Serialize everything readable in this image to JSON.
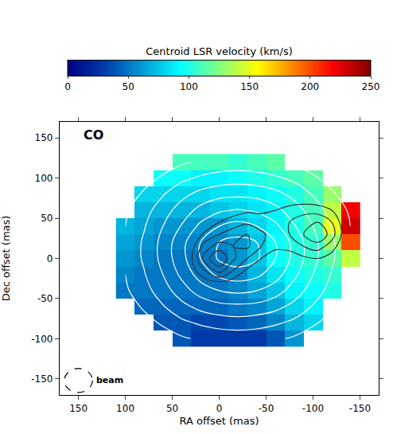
{
  "chart_data": {
    "type": "heatmap",
    "panel_label": "CO",
    "xlabel": "RA offset (mas)",
    "ylabel": "Dec offset (mas)",
    "xlim": [
      170,
      -170
    ],
    "ylim": [
      -170,
      170
    ],
    "xticks": [
      150,
      100,
      50,
      0,
      -50,
      -100,
      -150
    ],
    "yticks": [
      -150,
      -100,
      -50,
      0,
      50,
      100,
      150
    ],
    "colorbar": {
      "title": "Centroid LSR velocity (km/s)",
      "range": [
        0,
        250
      ],
      "ticks": [
        0,
        50,
        100,
        150,
        200,
        250
      ]
    },
    "x": [
      100,
      80,
      60,
      40,
      20,
      0,
      -20,
      -40,
      -60,
      -80,
      -100,
      -120,
      -140
    ],
    "y": [
      -100,
      -80,
      -60,
      -40,
      -20,
      0,
      20,
      40,
      60,
      80,
      100,
      120
    ],
    "z": [
      [
        null,
        null,
        null,
        40,
        30,
        30,
        30,
        30,
        40,
        60,
        null,
        null,
        null
      ],
      [
        null,
        null,
        40,
        40,
        35,
        35,
        40,
        45,
        55,
        70,
        80,
        null,
        null
      ],
      [
        null,
        45,
        45,
        45,
        45,
        45,
        50,
        55,
        65,
        80,
        90,
        null,
        null
      ],
      [
        50,
        50,
        50,
        50,
        50,
        50,
        55,
        65,
        75,
        90,
        95,
        100,
        null
      ],
      [
        55,
        50,
        50,
        50,
        50,
        50,
        55,
        70,
        85,
        95,
        100,
        105,
        null
      ],
      [
        60,
        55,
        50,
        50,
        50,
        50,
        60,
        75,
        95,
        100,
        105,
        115,
        140
      ],
      [
        65,
        60,
        55,
        55,
        55,
        55,
        60,
        75,
        95,
        100,
        105,
        130,
        200
      ],
      [
        70,
        65,
        60,
        60,
        60,
        60,
        70,
        80,
        90,
        100,
        110,
        150,
        230
      ],
      [
        null,
        70,
        70,
        70,
        70,
        75,
        80,
        85,
        90,
        100,
        110,
        140,
        220
      ],
      [
        null,
        80,
        80,
        80,
        80,
        85,
        85,
        90,
        95,
        100,
        110,
        130,
        null
      ],
      [
        null,
        null,
        95,
        95,
        90,
        90,
        95,
        100,
        105,
        110,
        115,
        null,
        null
      ],
      [
        null,
        null,
        null,
        110,
        110,
        110,
        105,
        110,
        115,
        null,
        null,
        null,
        null
      ]
    ],
    "contours": [
      {
        "color": "white",
        "x": [
          100,
          80,
          60,
          40,
          20,
          0,
          -20,
          -40,
          -60,
          -80,
          -100,
          -120,
          -140
        ],
        "y": [
          -100,
          -80,
          -60,
          -40,
          -20,
          0,
          20,
          40,
          60,
          80,
          100,
          120
        ],
        "levels": {
          "start": 1,
          "end": 9,
          "size": 1.3
        },
        "z": [
          [
            0,
            0,
            0.3,
            0.8,
            1.2,
            1.5,
            1.5,
            1.5,
            1.2,
            0.8,
            0.3,
            0,
            0
          ],
          [
            0,
            0.5,
            1.2,
            2,
            2.5,
            2.8,
            3,
            2.8,
            2.5,
            2,
            1.2,
            0.5,
            0
          ],
          [
            0.3,
            1.2,
            2.2,
            3.2,
            4,
            4.5,
            4.6,
            4.5,
            4,
            3.2,
            2.2,
            1.2,
            0.3
          ],
          [
            0.8,
            1.8,
            3,
            4.3,
            5.5,
            6.2,
            6.5,
            6.2,
            5.5,
            4.3,
            3,
            1.8,
            0.8
          ],
          [
            1,
            2.2,
            3.6,
            5.2,
            6.8,
            7.8,
            8.2,
            7.8,
            6.8,
            5.2,
            3.6,
            2.2,
            1
          ],
          [
            1.2,
            2.5,
            4,
            5.8,
            7.5,
            9,
            9.5,
            9,
            7.5,
            5.8,
            4,
            2.5,
            1.2
          ],
          [
            1.2,
            2.5,
            4,
            5.8,
            7.5,
            8.8,
            9.2,
            8.8,
            7.5,
            5.8,
            4,
            2.5,
            1.2
          ],
          [
            1,
            2.2,
            3.6,
            5,
            6.5,
            7.5,
            8,
            7.5,
            6.5,
            5,
            3.6,
            2.2,
            1
          ],
          [
            0.8,
            1.8,
            3,
            4.2,
            5.3,
            6,
            6.3,
            6,
            5.3,
            4.2,
            3,
            1.8,
            0.8
          ],
          [
            0.3,
            1.2,
            2.2,
            3.2,
            4,
            4.5,
            4.6,
            4.5,
            4,
            3.2,
            2.2,
            1.2,
            0.3
          ],
          [
            0,
            0.5,
            1.2,
            2,
            2.5,
            2.8,
            3,
            2.8,
            2.5,
            2,
            1.2,
            0.5,
            0
          ],
          [
            0,
            0,
            0.3,
            0.8,
            1.2,
            1.5,
            1.5,
            1.5,
            1.2,
            0.8,
            0.3,
            0,
            0
          ]
        ]
      },
      {
        "color": "#333333",
        "x": [
          30,
          15,
          0,
          -15,
          -30,
          -45,
          -60,
          -75,
          -90,
          -105,
          -120,
          -135
        ],
        "y": [
          -30,
          -15,
          0,
          15,
          30,
          45,
          60,
          75
        ],
        "levels": {
          "start": 1,
          "end": 5,
          "size": 1
        },
        "z": [
          [
            0,
            0.5,
            0.8,
            0.5,
            0,
            0,
            0,
            0,
            0,
            0,
            0,
            0
          ],
          [
            0.5,
            2,
            3.5,
            2,
            0.8,
            0.3,
            0,
            0,
            0,
            0,
            0,
            0
          ],
          [
            0.8,
            3.5,
            5,
            3.2,
            2,
            1,
            0.5,
            0.5,
            0.8,
            1,
            0.5,
            0
          ],
          [
            0.5,
            2.5,
            3.5,
            3,
            3.2,
            2,
            1.2,
            1.3,
            2,
            2.5,
            1.5,
            0
          ],
          [
            0.2,
            1.2,
            2,
            2.5,
            3,
            2.2,
            1.5,
            2,
            3,
            4,
            2.5,
            0.3
          ],
          [
            0,
            0.3,
            1,
            1.5,
            1.8,
            1.5,
            1.5,
            2,
            2.8,
            3,
            2,
            0.2
          ],
          [
            0,
            0,
            0.2,
            0.5,
            0.8,
            0.8,
            1,
            1.3,
            1.5,
            1.5,
            1,
            0
          ],
          [
            0,
            0,
            0,
            0,
            0,
            0.2,
            0.3,
            0.5,
            0.5,
            0.3,
            0.2,
            0
          ]
        ]
      }
    ],
    "beam": {
      "label": "beam",
      "x": 150,
      "y": -152,
      "diameter": 30
    }
  }
}
